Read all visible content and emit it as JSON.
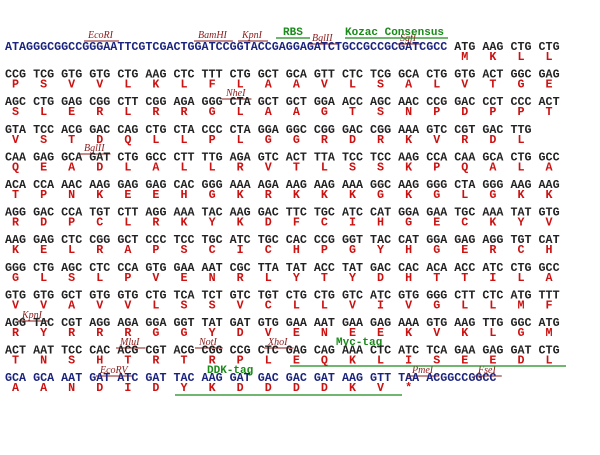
{
  "sequence": {
    "rows": [
      {
        "leader": "ATAGGGCGGCCGGGAATTCGTCGACTGGATCCGGTACCGAGGAGATCTGCCGCCGCGATCGCC",
        "dna": "ATG AAG CTG CTG",
        "protein": [
          "M",
          "K",
          "L",
          "L"
        ]
      },
      {
        "dna": "CCG TCG GTG GTG CTG AAG CTC TTT CTG GCT GCA GTT CTC TCG GCA CTG GTG ACT GGC GAG",
        "protein": [
          "P",
          "S",
          "V",
          "V",
          "L",
          "K",
          "L",
          "F",
          "L",
          "A",
          "A",
          "V",
          "L",
          "S",
          "A",
          "L",
          "V",
          "T",
          "G",
          "E"
        ]
      },
      {
        "dna": "AGC CTG GAG CGG CTT CGG AGA GGG CTA GCT GCT GGA ACC AGC AAC CCG GAC CCT CCC ACT",
        "protein": [
          "S",
          "L",
          "E",
          "R",
          "L",
          "R",
          "R",
          "G",
          "L",
          "A",
          "A",
          "G",
          "T",
          "S",
          "N",
          "P",
          "D",
          "P",
          "P",
          "T"
        ]
      },
      {
        "dna": "GTA TCC ACG GAC CAG CTG CTA CCC CTA GGA GGC CGG GAC CGG AAA GTC CGT GAC TTG",
        "protein": [
          "V",
          "S",
          "T",
          "D",
          "Q",
          "L",
          "L",
          "P",
          "L",
          "G",
          "G",
          "R",
          "D",
          "R",
          "K",
          "V",
          "R",
          "D",
          "L"
        ]
      },
      {
        "dna": "CAA GAG GCA GAT CTG GCC CTT TTG AGA GTC ACT TTA TCC TCC AAG CCA CAA GCA CTG GCC",
        "protein": [
          "Q",
          "E",
          "A",
          "D",
          "L",
          "A",
          "L",
          "L",
          "R",
          "V",
          "T",
          "L",
          "S",
          "S",
          "K",
          "P",
          "Q",
          "A",
          "L",
          "A"
        ]
      },
      {
        "dna": "ACA CCA AAC AAG GAG GAG CAC GGG AAA AGA AAG AAG AAA GGC AAG GGG CTA GGG AAG AAG",
        "protein": [
          "T",
          "P",
          "N",
          "K",
          "E",
          "E",
          "H",
          "G",
          "K",
          "R",
          "K",
          "K",
          "K",
          "G",
          "K",
          "G",
          "L",
          "G",
          "K",
          "K"
        ]
      },
      {
        "dna": "AGG GAC CCA TGT CTT AGG AAA TAC AAG GAC TTC TGC ATC CAT GGA GAA TGC AAA TAT GTG",
        "protein": [
          "R",
          "D",
          "P",
          "C",
          "L",
          "R",
          "K",
          "Y",
          "K",
          "D",
          "F",
          "C",
          "I",
          "H",
          "G",
          "E",
          "C",
          "K",
          "Y",
          "V"
        ]
      },
      {
        "dna": "AAG GAG CTC CGG GCT CCC TCC TGC ATC TGC CAC CCG GGT TAC CAT GGA GAG AGG TGT CAT",
        "protein": [
          "K",
          "E",
          "L",
          "R",
          "A",
          "P",
          "S",
          "C",
          "I",
          "C",
          "H",
          "P",
          "G",
          "Y",
          "H",
          "G",
          "E",
          "R",
          "C",
          "H"
        ]
      },
      {
        "dna": "GGG CTG AGC CTC CCA GTG GAA AAT CGC TTA TAT ACC TAT GAC CAC ACA ACC ATC CTG GCC",
        "protein": [
          "G",
          "L",
          "S",
          "L",
          "P",
          "V",
          "E",
          "N",
          "R",
          "L",
          "Y",
          "T",
          "Y",
          "D",
          "H",
          "T",
          "T",
          "I",
          "L",
          "A"
        ]
      },
      {
        "dna": "GTG GTG GCT GTG GTG CTG TCA TCT GTC TGT CTG CTG GTC ATC GTG GGG CTT CTC ATG TTT",
        "protein": [
          "V",
          "V",
          "A",
          "V",
          "V",
          "L",
          "S",
          "S",
          "V",
          "C",
          "L",
          "L",
          "V",
          "I",
          "V",
          "G",
          "L",
          "L",
          "M",
          "F"
        ]
      },
      {
        "dna": "AGG TAC CGT AGG AGA GGA GGT TAT GAT GTG GAA AAT GAA GAG AAA GTG AAG TTG GGC ATG",
        "protein": [
          "R",
          "Y",
          "R",
          "R",
          "R",
          "G",
          "G",
          "Y",
          "D",
          "V",
          "E",
          "N",
          "E",
          "E",
          "K",
          "V",
          "K",
          "L",
          "G",
          "M"
        ]
      },
      {
        "dna": "ACT AAT TCC CAC ACG CGT ACG CGG CCG CTC GAG CAG AAA CTC ATC TCA GAA GAG GAT CTG",
        "protein": [
          "T",
          "N",
          "S",
          "H",
          "T",
          "R",
          "T",
          "R",
          "P",
          "L",
          "E",
          "Q",
          "K",
          "L",
          "I",
          "S",
          "E",
          "E",
          "D",
          "L"
        ]
      },
      {
        "dna": "GCA GCA AAT GAT ATC GAT TAC AAG GAT GAC GAC GAT AAG GTT TAA ACGGCCGGCC",
        "protein": [
          "A",
          "A",
          "N",
          "D",
          "I",
          "D",
          "Y",
          "K",
          "D",
          "D",
          "D",
          "D",
          "K",
          "V",
          "*"
        ]
      }
    ],
    "sites": [
      "EcoRI",
      "BamHI",
      "KpnI",
      "BglII",
      "SgfI",
      "NheI",
      "BglII",
      "KpnI",
      "MluI",
      "NotI",
      "XhoI",
      "EcoRV",
      "PmeI",
      "FseI"
    ],
    "features": [
      "RBS",
      "Kozac Consensus",
      "Myc-tag",
      "DDK-tag"
    ]
  }
}
